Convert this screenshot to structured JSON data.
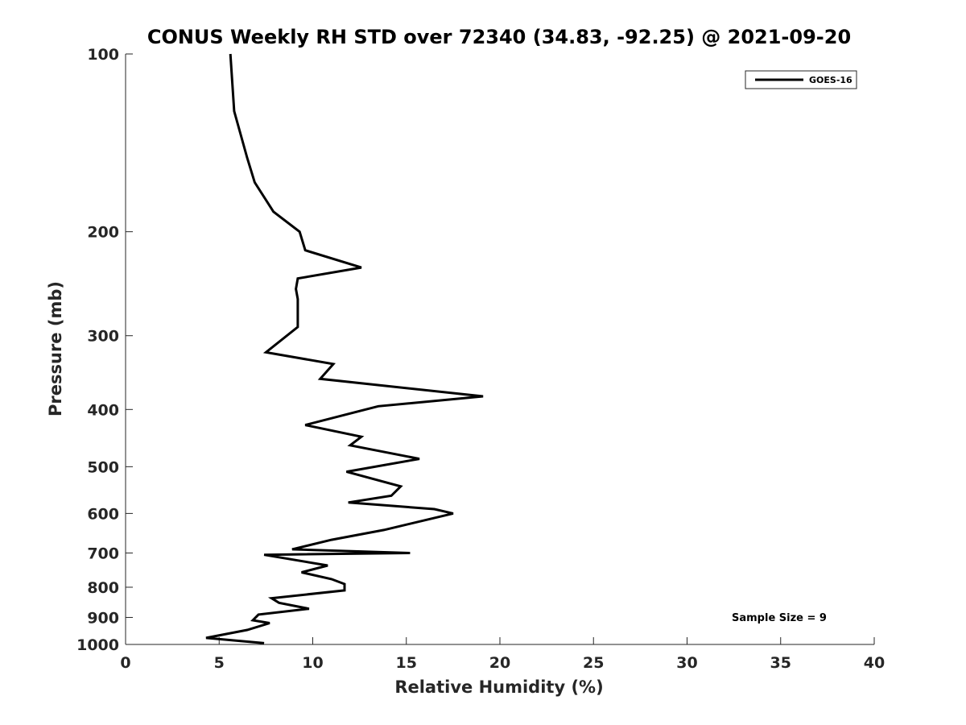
{
  "chart_data": {
    "type": "line",
    "title": "CONUS Weekly RH STD over 72340 (34.83, -92.25) @ 2021-09-20",
    "xlabel": "Relative Humidity (%)",
    "ylabel": "Pressure (mb)",
    "xlim": [
      0,
      40
    ],
    "ylim": [
      1000,
      100
    ],
    "y_scale": "log",
    "y_reversed": true,
    "xticks": [
      0,
      5,
      10,
      15,
      20,
      25,
      30,
      35,
      40
    ],
    "yticks": [
      100,
      200,
      300,
      400,
      500,
      600,
      700,
      800,
      900,
      1000
    ],
    "grid": false,
    "legend_position": "top-right",
    "annotation": "Sample Size = 9",
    "series": [
      {
        "name": "GOES-16",
        "color": "#000000",
        "x": [
          5.6,
          5.8,
          6.5,
          6.9,
          7.9,
          9.3,
          9.6,
          12.6,
          9.2,
          9.1,
          9.2,
          9.2,
          7.5,
          11.1,
          10.4,
          19.1,
          13.5,
          9.6,
          12.6,
          12.0,
          15.7,
          11.8,
          14.7,
          14.2,
          11.9,
          16.5,
          17.5,
          13.8,
          11.0,
          8.9,
          15.2,
          7.4,
          10.8,
          9.4,
          11.0,
          11.7,
          11.7,
          7.8,
          8.2,
          9.8,
          7.1,
          6.8,
          7.7,
          6.5,
          4.3,
          7.4
        ],
        "y": [
          100,
          125,
          150,
          165,
          185,
          200,
          215,
          230,
          240,
          250,
          260,
          290,
          320,
          335,
          355,
          380,
          395,
          425,
          445,
          460,
          485,
          510,
          540,
          560,
          575,
          590,
          600,
          640,
          665,
          690,
          700,
          705,
          735,
          755,
          775,
          790,
          810,
          835,
          850,
          870,
          890,
          910,
          920,
          945,
          975,
          995
        ]
      }
    ]
  }
}
